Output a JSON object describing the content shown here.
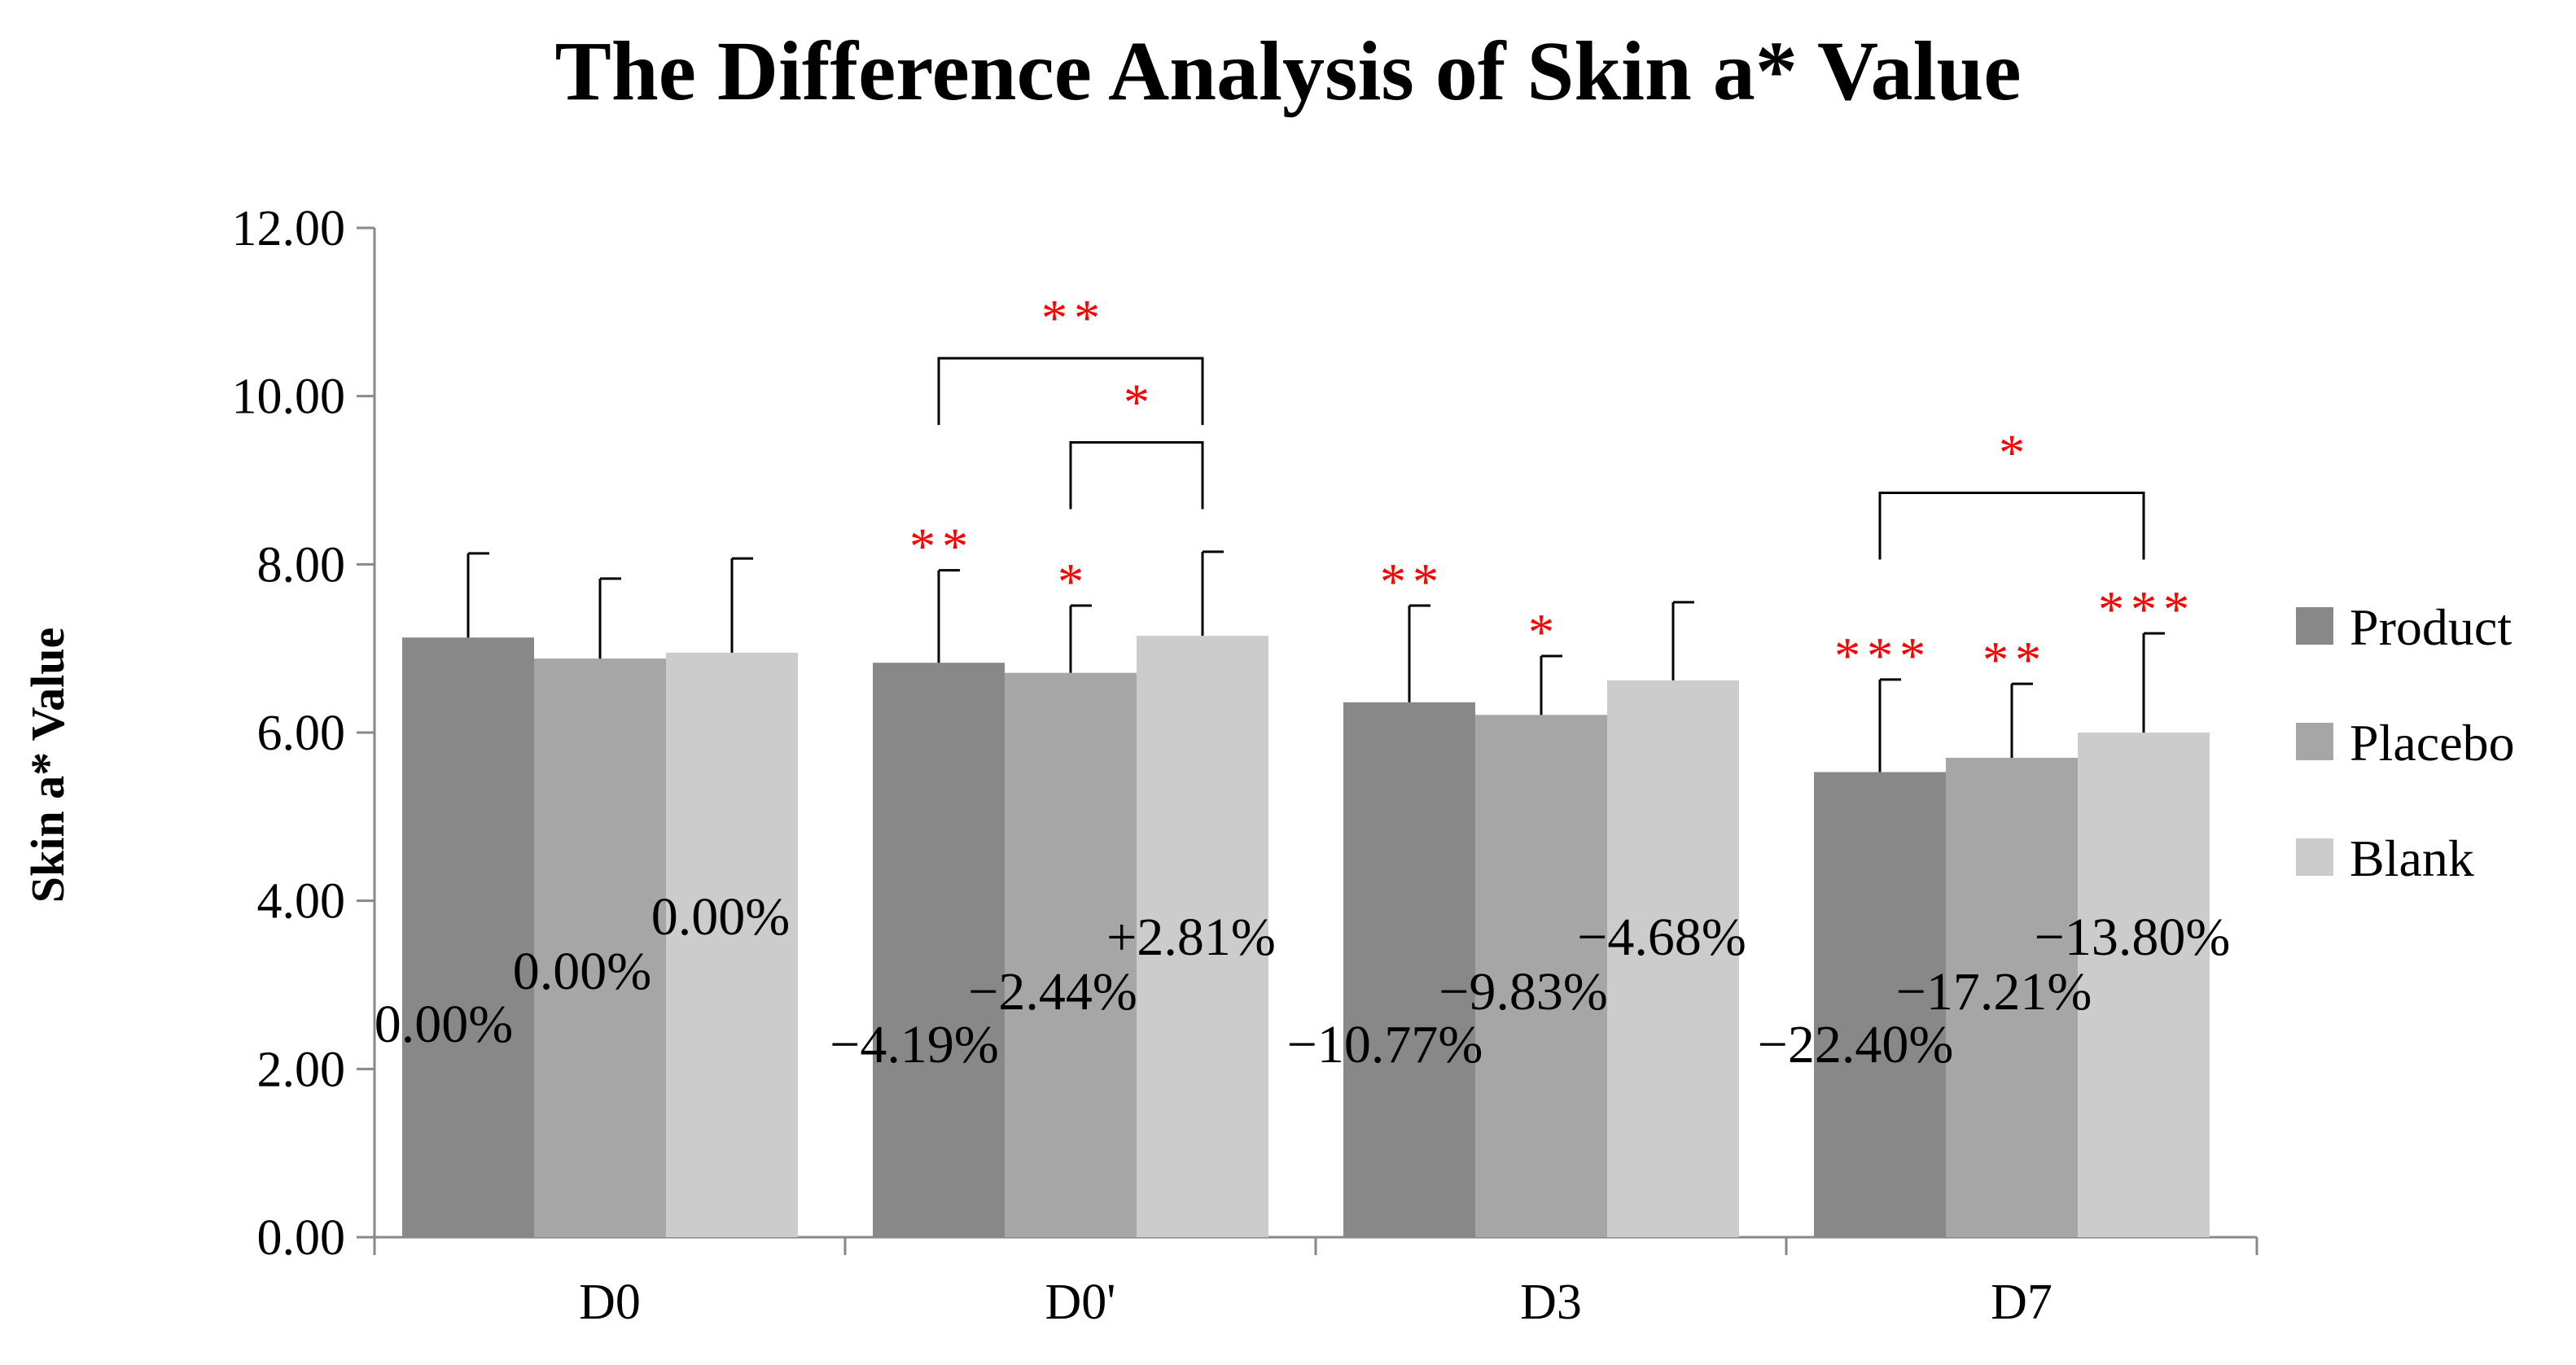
{
  "chart_data": {
    "type": "bar",
    "title": "The Difference Analysis of Skin a* Value",
    "xlabel": "",
    "ylabel": "Skin a* Value",
    "ylim": [
      0,
      12
    ],
    "yticks": [
      "0.00",
      "2.00",
      "4.00",
      "6.00",
      "8.00",
      "10.00",
      "12.00"
    ],
    "grid": false,
    "legend_position": "right",
    "categories": [
      "D0",
      "D0'",
      "D3",
      "D7"
    ],
    "series": [
      {
        "name": "Product",
        "color": "#888888",
        "values": [
          7.13,
          6.83,
          6.36,
          5.53
        ],
        "errors": [
          1.0,
          1.1,
          1.15,
          1.1
        ],
        "changes": [
          "0.00%",
          "−4.19%",
          "−10.77%",
          "−22.40%"
        ],
        "stars": [
          "",
          "**",
          "**",
          "***"
        ]
      },
      {
        "name": "Placebo",
        "color": "#a6a6a6",
        "values": [
          6.88,
          6.71,
          6.21,
          5.7
        ],
        "errors": [
          0.95,
          0.8,
          0.7,
          0.88
        ],
        "changes": [
          "0.00%",
          "−2.44%",
          "−9.83%",
          "−17.21%"
        ],
        "stars": [
          "",
          "*",
          "*",
          "**"
        ]
      },
      {
        "name": "Blank",
        "color": "#cccccc",
        "values": [
          6.95,
          7.15,
          6.62,
          6.0
        ],
        "errors": [
          1.12,
          1.0,
          0.93,
          1.18
        ],
        "changes": [
          "0.00%",
          "+2.81%",
          "−4.68%",
          "−13.80%"
        ],
        "stars": [
          "",
          "",
          "",
          "***"
        ]
      }
    ],
    "comparisons": [
      {
        "category": "D0'",
        "from": "Product",
        "to": "Blank",
        "label": "**",
        "height": 10.45
      },
      {
        "category": "D0'",
        "from": "Placebo",
        "to": "Blank",
        "label": "*",
        "height": 9.45
      },
      {
        "category": "D7",
        "from": "Product",
        "to": "Blank",
        "label": "*",
        "height": 8.85
      }
    ]
  }
}
